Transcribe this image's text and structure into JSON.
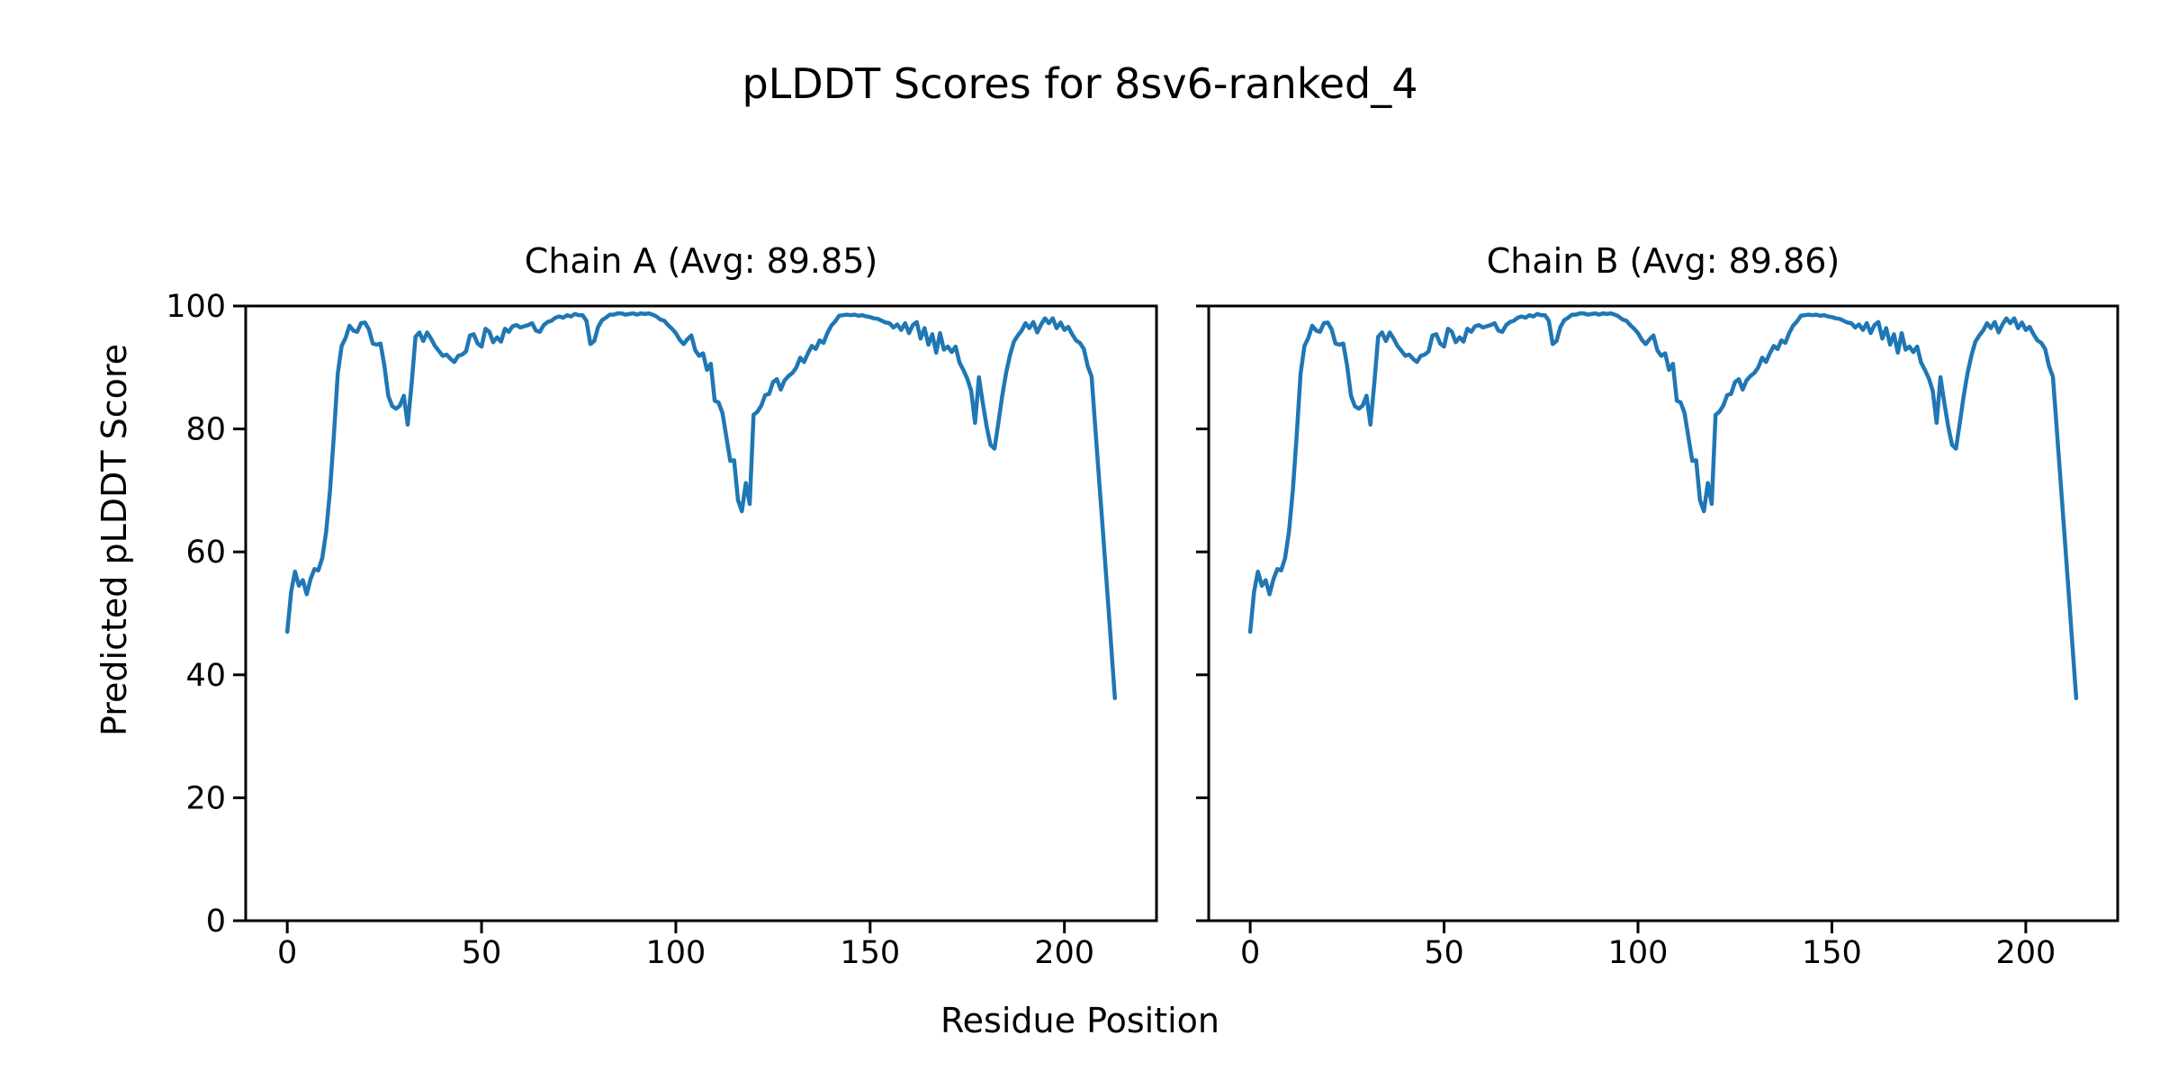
{
  "figure": {
    "title": "pLDDT Scores for 8sv6-ranked_4",
    "background_color": "#ffffff",
    "text_color": "#000000"
  },
  "chart_data": {
    "type": "line",
    "title": "pLDDT Scores for 8sv6-ranked_4",
    "xlabel": "Residue Position",
    "ylabel": "Predicted pLDDT Score",
    "line_color": "#1f77b4",
    "axis_color": "#000000",
    "grid": false,
    "legend": "none",
    "x_ticks": [
      0,
      50,
      100,
      150,
      200
    ],
    "y_ticks": [
      0,
      20,
      40,
      60,
      80,
      100
    ],
    "ylim": [
      0,
      100
    ],
    "xlim": [
      -10.7,
      223.7
    ],
    "x_start": 0,
    "x_step": 1,
    "subplots": [
      {
        "title": "Chain A (Avg: 89.85)",
        "chain": "A",
        "avg_plddt": 89.85,
        "values": [
          47.0,
          53.5,
          56.8,
          54.5,
          55.4,
          53.1,
          55.6,
          57.2,
          57.0,
          59.0,
          63.3,
          70.0,
          79.0,
          89.0,
          93.5,
          94.8,
          96.8,
          96.0,
          95.8,
          97.2,
          97.3,
          96.2,
          93.9,
          93.7,
          93.9,
          90.3,
          85.4,
          83.7,
          83.3,
          83.8,
          85.4,
          80.7,
          87.4,
          95.0,
          95.7,
          94.3,
          95.7,
          94.7,
          93.5,
          92.7,
          91.9,
          92.1,
          91.4,
          90.9,
          91.9,
          92.1,
          92.6,
          95.2,
          95.4,
          93.9,
          93.4,
          96.3,
          95.8,
          94.1,
          94.9,
          94.2,
          96.3,
          95.8,
          96.7,
          96.9,
          96.5,
          96.7,
          96.9,
          97.2,
          96.0,
          95.8,
          96.9,
          97.4,
          97.6,
          98.1,
          98.3,
          98.1,
          98.5,
          98.3,
          98.7,
          98.5,
          98.5,
          97.6,
          93.8,
          94.3,
          96.6,
          97.7,
          98.1,
          98.6,
          98.6,
          98.8,
          98.8,
          98.6,
          98.7,
          98.8,
          98.6,
          98.8,
          98.7,
          98.8,
          98.6,
          98.3,
          97.8,
          97.6,
          96.9,
          96.3,
          95.6,
          94.5,
          93.8,
          94.6,
          95.2,
          92.8,
          91.9,
          92.3,
          89.6,
          90.6,
          84.6,
          84.3,
          82.6,
          78.7,
          74.8,
          74.9,
          68.4,
          66.6,
          71.2,
          67.8,
          82.3,
          82.8,
          83.8,
          85.5,
          85.7,
          87.6,
          88.1,
          86.4,
          87.9,
          88.6,
          89.1,
          90.0,
          91.6,
          90.9,
          92.3,
          93.5,
          93.0,
          94.4,
          94.0,
          95.6,
          96.8,
          97.5,
          98.4,
          98.5,
          98.6,
          98.5,
          98.6,
          98.4,
          98.5,
          98.3,
          98.2,
          98.0,
          97.9,
          97.6,
          97.3,
          97.2,
          96.5,
          97.0,
          96.1,
          97.2,
          95.6,
          96.9,
          97.4,
          94.7,
          96.4,
          93.7,
          95.4,
          92.4,
          95.6,
          92.9,
          93.4,
          92.5,
          93.4,
          90.8,
          89.6,
          88.2,
          86.2,
          81.0,
          88.4,
          84.2,
          80.4,
          77.4,
          76.8,
          81.0,
          85.4,
          89.1,
          92.0,
          94.2,
          95.2,
          96.0,
          97.2,
          96.4,
          97.4,
          95.7,
          97.0,
          98.0,
          97.2,
          98.0,
          96.4,
          97.3,
          96.1,
          96.6,
          95.4,
          94.4,
          94.0,
          93.0,
          90.2,
          88.5,
          79.8,
          71.2,
          62.5,
          53.8,
          45.0,
          36.2
        ]
      },
      {
        "title": "Chain B (Avg: 89.86)",
        "chain": "B",
        "avg_plddt": 89.86,
        "values": [
          47.0,
          53.5,
          56.8,
          54.5,
          55.4,
          53.1,
          55.6,
          57.2,
          57.0,
          59.0,
          63.3,
          70.0,
          79.0,
          89.0,
          93.5,
          94.8,
          96.8,
          96.0,
          95.8,
          97.2,
          97.3,
          96.2,
          93.9,
          93.7,
          93.9,
          90.3,
          85.4,
          83.7,
          83.3,
          83.8,
          85.4,
          80.7,
          87.4,
          95.0,
          95.7,
          94.3,
          95.7,
          94.7,
          93.5,
          92.7,
          91.9,
          92.1,
          91.4,
          90.9,
          91.9,
          92.1,
          92.6,
          95.2,
          95.4,
          93.9,
          93.4,
          96.3,
          95.8,
          94.1,
          94.9,
          94.2,
          96.3,
          95.8,
          96.7,
          96.9,
          96.5,
          96.7,
          96.9,
          97.2,
          96.0,
          95.8,
          96.9,
          97.4,
          97.6,
          98.1,
          98.3,
          98.1,
          98.5,
          98.3,
          98.7,
          98.5,
          98.5,
          97.6,
          93.8,
          94.3,
          96.6,
          97.7,
          98.1,
          98.6,
          98.6,
          98.8,
          98.8,
          98.6,
          98.7,
          98.8,
          98.6,
          98.8,
          98.7,
          98.8,
          98.6,
          98.3,
          97.8,
          97.6,
          96.9,
          96.3,
          95.6,
          94.5,
          93.8,
          94.6,
          95.2,
          92.8,
          91.9,
          92.3,
          89.6,
          90.6,
          84.6,
          84.3,
          82.6,
          78.7,
          74.8,
          74.9,
          68.4,
          66.6,
          71.2,
          67.8,
          82.3,
          82.8,
          83.8,
          85.5,
          85.7,
          87.6,
          88.1,
          86.4,
          87.9,
          88.6,
          89.1,
          90.0,
          91.6,
          90.9,
          92.3,
          93.5,
          93.0,
          94.4,
          94.0,
          95.6,
          96.8,
          97.5,
          98.4,
          98.5,
          98.6,
          98.5,
          98.6,
          98.4,
          98.5,
          98.3,
          98.2,
          98.0,
          97.9,
          97.6,
          97.3,
          97.2,
          96.5,
          97.0,
          96.1,
          97.2,
          95.6,
          96.9,
          97.4,
          94.7,
          96.4,
          93.7,
          95.4,
          92.4,
          95.6,
          92.9,
          93.4,
          92.5,
          93.4,
          90.8,
          89.6,
          88.2,
          86.2,
          81.0,
          88.4,
          84.2,
          80.4,
          77.4,
          76.8,
          81.0,
          85.4,
          89.1,
          92.0,
          94.2,
          95.2,
          96.0,
          97.2,
          96.4,
          97.4,
          95.7,
          97.0,
          98.0,
          97.2,
          98.0,
          96.4,
          97.3,
          96.1,
          96.6,
          95.4,
          94.4,
          94.0,
          93.0,
          90.2,
          88.5,
          79.8,
          71.2,
          62.5,
          53.8,
          45.0,
          36.2
        ]
      }
    ]
  }
}
